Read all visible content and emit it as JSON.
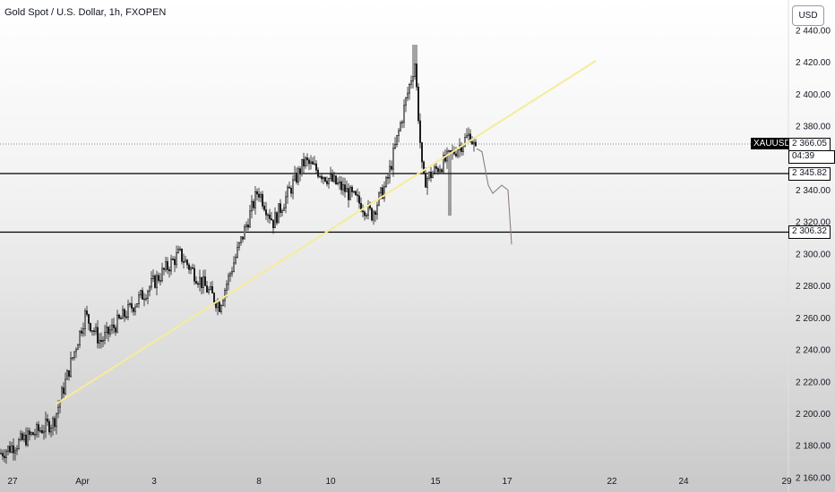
{
  "header": {
    "title": "Gold Spot / U.S. Dollar, 1h, FXOPEN",
    "currency_button": "USD"
  },
  "price_tags": {
    "symbol": "XAUUSD",
    "last_price": "2 366.05",
    "countdown": "04:39",
    "level_upper": "2 345.82",
    "level_lower": "2 306.32"
  },
  "chart_data": {
    "type": "candlestick",
    "title": "Gold Spot / U.S. Dollar, 1h, FXOPEN",
    "y_ticks": [
      "2 160.00",
      "2 180.00",
      "2 200.00",
      "2 220.00",
      "2 240.00",
      "2 260.00",
      "2 280.00",
      "2 300.00",
      "2 320.00",
      "2 340.00",
      "2 360.00",
      "2 380.00",
      "2 400.00",
      "2 420.00",
      "2 440.00"
    ],
    "ylim": [
      2151,
      2459
    ],
    "x_ticks": [
      "27",
      "Apr",
      "3",
      "8",
      "10",
      "15",
      "17",
      "22",
      "24",
      "29"
    ],
    "horizontal_levels": [
      2345.82,
      2306.32
    ],
    "last_price": 2366.05,
    "price_path": [
      [
        "27",
        2175
      ],
      [
        "Apr",
        2195
      ],
      [
        "Apr",
        2262
      ],
      [
        "3",
        2245
      ],
      [
        "3",
        2300
      ],
      [
        "3",
        2268
      ],
      [
        "8",
        2340
      ],
      [
        "8",
        2320
      ],
      [
        "8",
        2358
      ],
      [
        "10",
        2340
      ],
      [
        "10",
        2325
      ],
      [
        "10",
        2345
      ],
      [
        "15",
        2420
      ],
      [
        "15",
        2345
      ],
      [
        "15",
        2360
      ],
      [
        "15",
        2375
      ],
      [
        "17",
        2362
      ]
    ],
    "high_low_extremes": {
      "high": 2431,
      "low": 2175
    },
    "trendline": {
      "from": [
        "Apr",
        2190
      ],
      "to": [
        "22",
        2423
      ],
      "color": "#f0e68c"
    },
    "projection_path": [
      2366,
      2360,
      2345,
      2340,
      2343,
      2306
    ],
    "grid": false,
    "legend": "none"
  }
}
